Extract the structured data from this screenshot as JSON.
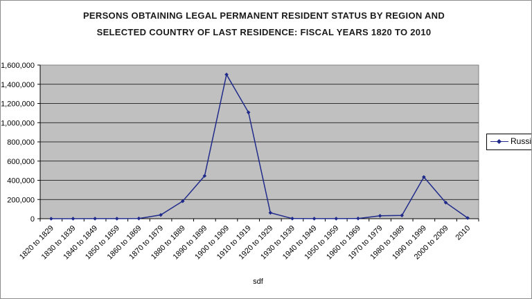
{
  "chart_data": {
    "type": "line",
    "title_lines": [
      "PERSONS OBTAINING LEGAL PERMANENT RESIDENT STATUS BY REGION AND",
      "SELECTED COUNTRY OF LAST RESIDENCE: FISCAL YEARS 1820 TO 2010"
    ],
    "xlabel": "sdf",
    "ylabel": "",
    "categories": [
      "1820 to 1829",
      "1830 to 1839",
      "1840 to 1849",
      "1850 to 1859",
      "1860 to 1869",
      "1870 to 1879",
      "1880 to 1889",
      "1890 to 1899",
      "1900 to 1909",
      "1910 to 1919",
      "1920 to 1929",
      "1930 to 1939",
      "1940 to 1949",
      "1950 to 1959",
      "1960 to 1969",
      "1970 to 1979",
      "1980 to 1989",
      "1990 to 1999",
      "2000 to 2009",
      "2010"
    ],
    "series": [
      {
        "name": "Russia",
        "color": "#1f2a8a",
        "values": [
          89,
          277,
          551,
          457,
          2512,
          39284,
          182000,
          446000,
          1501000,
          1107000,
          62000,
          1400,
          600,
          600,
          2300,
          30000,
          34000,
          434000,
          168000,
          7000
        ]
      }
    ],
    "y_tick_labels": [
      "0",
      "200,000",
      "400,000",
      "600,000",
      "800,000",
      "1,000,000",
      "1,200,000",
      "1,400,000",
      "1,600,000"
    ],
    "ylim": [
      0,
      1600000
    ],
    "grid": true,
    "legend_position": "right"
  }
}
